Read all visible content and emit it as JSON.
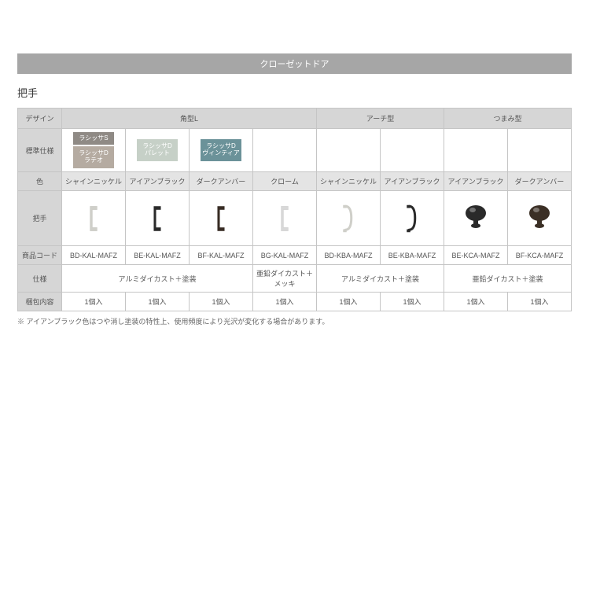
{
  "banner": "クローゼットドア",
  "section_title": "把手",
  "row_labels": {
    "design": "デザイン",
    "standard_spec": "標準仕様",
    "color": "色",
    "handle": "把手",
    "product_code": "商品コード",
    "spec": "仕様",
    "package": "梱包内容"
  },
  "design_groups": {
    "kakugata_l": "角型L",
    "arch": "アーチ型",
    "tsumami": "つまみ型"
  },
  "spec_chips": {
    "lacissa_s": {
      "label": "ラシッサS",
      "bg": "#8f8a85"
    },
    "lacissa_d_lateo": {
      "label1": "ラシッサD",
      "label2": "ラテオ",
      "bg": "#b5aba1"
    },
    "lacissa_d_palette": {
      "label1": "ラシッサD",
      "label2": "パレット",
      "bg": "#c6d0c7"
    },
    "lacissa_d_vintia": {
      "label1": "ラシッサD",
      "label2": "ヴィンティア",
      "bg": "#6b9299"
    }
  },
  "columns": [
    {
      "color_name": "シャインニッケル",
      "code": "BD-KAL-MAFZ",
      "pack": "1個入",
      "handle_type": "square",
      "handle_color": "#cfcfc9"
    },
    {
      "color_name": "アイアンブラック",
      "code": "BE-KAL-MAFZ",
      "pack": "1個入",
      "handle_type": "square",
      "handle_color": "#2a2a2a"
    },
    {
      "color_name": "ダークアンバー",
      "code": "BF-KAL-MAFZ",
      "pack": "1個入",
      "handle_type": "square",
      "handle_color": "#382c24"
    },
    {
      "color_name": "クローム",
      "code": "BG-KAL-MAFZ",
      "pack": "1個入",
      "handle_type": "square",
      "handle_color": "#d8d8d8"
    },
    {
      "color_name": "シャインニッケル",
      "code": "BD-KBA-MAFZ",
      "pack": "1個入",
      "handle_type": "arch",
      "handle_color": "#cfcfc9"
    },
    {
      "color_name": "アイアンブラック",
      "code": "BE-KBA-MAFZ",
      "pack": "1個入",
      "handle_type": "arch",
      "handle_color": "#2a2a2a"
    },
    {
      "color_name": "アイアンブラック",
      "code": "BE-KCA-MAFZ",
      "pack": "1個入",
      "handle_type": "knob",
      "handle_color": "#2a2a2a"
    },
    {
      "color_name": "ダークアンバー",
      "code": "BF-KCA-MAFZ",
      "pack": "1個入",
      "handle_type": "knob",
      "handle_color": "#3b2f25"
    }
  ],
  "spec_merge": {
    "alumi_tosou": "アルミダイカスト＋塗装",
    "aen_mekki": "亜鉛ダイカスト＋メッキ",
    "alumi_tosou2": "アルミダイカスト＋塗装",
    "aen_tosou": "亜鉛ダイカスト＋塗装"
  },
  "footnote": "※ アイアンブラック色はつや消し塗装の特性上、使用頻度により光沢が変化する場合があります。",
  "colors": {
    "banner_bg": "#a6a6a6",
    "header_bg": "#d6d6d6",
    "color_cell_bg": "#e4e4e4",
    "border": "#c5c5c5"
  }
}
